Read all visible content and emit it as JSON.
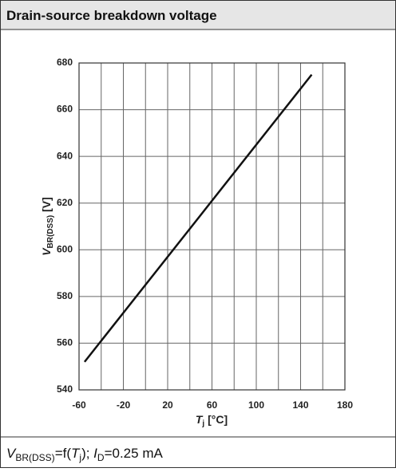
{
  "chart_data": {
    "type": "line",
    "title": "Drain-source breakdown voltage",
    "x": [
      -55,
      150
    ],
    "series": [
      {
        "color": "#111111",
        "values": [
          552,
          675
        ]
      }
    ],
    "xlim": [
      -60,
      180
    ],
    "xticks": [
      -60,
      -20,
      20,
      60,
      100,
      140,
      180
    ],
    "ylim": [
      540,
      680
    ],
    "yticks": [
      540,
      560,
      580,
      600,
      620,
      640,
      660,
      680
    ],
    "grid": true,
    "xlabel": {
      "main": "T",
      "sub": "j",
      "unit": " [°C]"
    },
    "ylabel": {
      "main": "V",
      "sub": "BR(DSS)",
      "unit": " [V]"
    },
    "footer": {
      "v": "V",
      "v_sub": "BR(DSS)",
      "eq": "=f(",
      "t": "T",
      "t_sub": "j",
      "mid": "); ",
      "i": "I",
      "i_sub": "D",
      "end": "=0.25 mA"
    }
  }
}
